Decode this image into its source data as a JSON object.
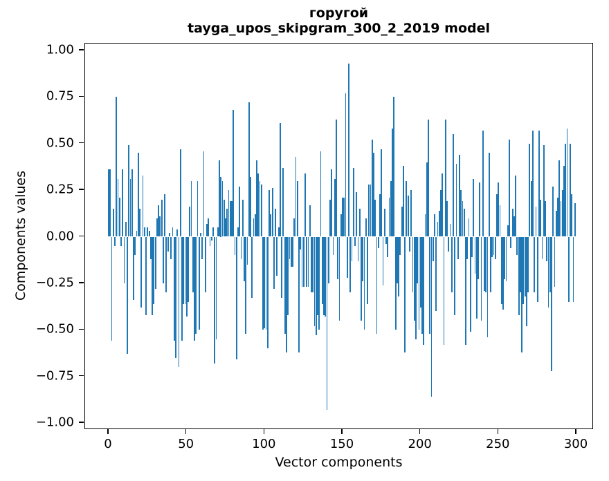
{
  "figure": {
    "title_line1": "горугой",
    "title_line2": "tayga_upos_skipgram_300_2_2019 model",
    "background_color": "#ffffff",
    "axes_color": "#000000"
  },
  "chart_data": {
    "type": "bar",
    "title": "горугой",
    "subtitle": "tayga_upos_skipgram_300_2_2019 model",
    "xlabel": "Vector components",
    "ylabel": "Components values",
    "legend": "none",
    "grid": false,
    "bar_color": "#1f77b4",
    "bar_width": 0.8,
    "xlim": [
      -15.1,
      311.1
    ],
    "ylim": [
      -1.037,
      1.037
    ],
    "xtick_values": [
      0,
      50,
      100,
      150,
      200,
      250,
      300
    ],
    "xtick_labels": [
      "0",
      "50",
      "100",
      "150",
      "200",
      "250",
      "300"
    ],
    "ytick_values": [
      1.0,
      0.75,
      0.5,
      0.25,
      0.0,
      -0.25,
      -0.5,
      -0.75,
      -1.0
    ],
    "ytick_labels": [
      "1.00",
      "0.75",
      "0.50",
      "0.25",
      "0.00",
      "−0.25",
      "−0.50",
      "−0.75",
      "−1.00"
    ],
    "x_start": 0,
    "values": [
      0.36,
      0.36,
      -0.56,
      0.15,
      -0.05,
      0.75,
      0.31,
      0.21,
      -0.05,
      0.36,
      -0.25,
      0.08,
      -0.63,
      0.49,
      0.31,
      0.36,
      -0.34,
      -0.1,
      0.03,
      0.45,
      0.15,
      -0.38,
      0.33,
      0.05,
      -0.42,
      0.05,
      0.03,
      -0.12,
      -0.42,
      -0.36,
      -0.28,
      0.1,
      0.17,
      0.11,
      0.2,
      -0.25,
      0.23,
      -0.3,
      -0.08,
      0.02,
      -0.12,
      0.05,
      -0.56,
      -0.65,
      0.04,
      -0.7,
      0.47,
      -0.56,
      -0.36,
      -0.36,
      -0.43,
      -0.35,
      0.16,
      0.3,
      -0.3,
      -0.56,
      -0.52,
      0.3,
      -0.5,
      0.02,
      -0.12,
      0.46,
      -0.3,
      0.07,
      0.1,
      -0.05,
      -0.02,
      0.05,
      -0.68,
      -0.55,
      0.05,
      0.41,
      0.32,
      0.3,
      0.2,
      0.1,
      0.15,
      0.25,
      0.19,
      0.19,
      0.68,
      -0.1,
      -0.66,
      0.05,
      0.27,
      -0.12,
      0.2,
      -0.24,
      -0.52,
      -0.15,
      0.72,
      0.32,
      -0.33,
      0.1,
      0.12,
      0.41,
      0.34,
      0.3,
      0.28,
      -0.5,
      -0.49,
      -0.5,
      -0.6,
      0.25,
      0.12,
      0.26,
      -0.28,
      0.15,
      -0.21,
      0.05,
      0.61,
      -0.33,
      0.37,
      -0.52,
      -0.62,
      -0.42,
      -0.12,
      -0.16,
      -0.16,
      0.1,
      0.43,
      0.3,
      -0.62,
      -0.07,
      -0.27,
      -0.27,
      0.34,
      -0.27,
      -0.27,
      0.17,
      -0.3,
      -0.3,
      -0.48,
      -0.53,
      -0.42,
      -0.5,
      0.46,
      -0.36,
      -0.42,
      -0.43,
      -0.93,
      -0.25,
      0.2,
      0.36,
      -0.1,
      0.31,
      0.63,
      -0.23,
      -0.45,
      0.12,
      0.21,
      0.21,
      0.77,
      -0.22,
      0.93,
      -0.3,
      -0.13,
      0.37,
      -0.05,
      0.24,
      -0.13,
      0.15,
      -0.45,
      -0.24,
      -0.5,
      0.1,
      -0.36,
      0.28,
      0.28,
      0.52,
      0.45,
      0.2,
      -0.52,
      -0.06,
      0.23,
      0.47,
      -0.26,
      0.15,
      -0.04,
      -0.11,
      0.21,
      0.3,
      0.58,
      0.75,
      -0.5,
      -0.25,
      -0.32,
      -0.1,
      0.16,
      0.38,
      -0.62,
      0.3,
      0.22,
      -0.08,
      0.25,
      -0.3,
      -0.45,
      -0.55,
      -0.25,
      -0.5,
      -0.38,
      -0.52,
      -0.58,
      0.12,
      0.4,
      0.63,
      -0.52,
      -0.86,
      -0.13,
      0.12,
      -0.4,
      0.08,
      0.14,
      0.25,
      0.34,
      -0.58,
      0.63,
      0.19,
      -0.08,
      0.07,
      -0.3,
      0.55,
      -0.42,
      0.39,
      -0.12,
      0.44,
      0.25,
      0.19,
      0.15,
      -0.58,
      -0.12,
      0.1,
      -0.51,
      -0.11,
      0.31,
      -0.2,
      -0.44,
      -0.23,
      0.29,
      -0.45,
      0.57,
      -0.29,
      -0.3,
      -0.54,
      0.45,
      -0.3,
      -0.11,
      -0.1,
      -0.12,
      0.23,
      0.29,
      0.17,
      -0.36,
      -0.39,
      -0.23,
      -0.24,
      0.06,
      0.52,
      -0.06,
      0.15,
      0.11,
      0.33,
      -0.1,
      -0.42,
      -0.3,
      -0.62,
      -0.36,
      -0.32,
      -0.48,
      -0.3,
      0.5,
      0.3,
      0.57,
      -0.3,
      0.16,
      -0.35,
      0.57,
      0.2,
      -0.12,
      0.49,
      0.19,
      -0.13,
      -0.38,
      -0.3,
      -0.72,
      0.27,
      -0.27,
      0.14,
      0.21,
      0.41,
      0.19,
      0.25,
      0.38,
      0.5,
      0.58,
      -0.35,
      0.5,
      0.23,
      -0.35,
      0.18
    ]
  }
}
